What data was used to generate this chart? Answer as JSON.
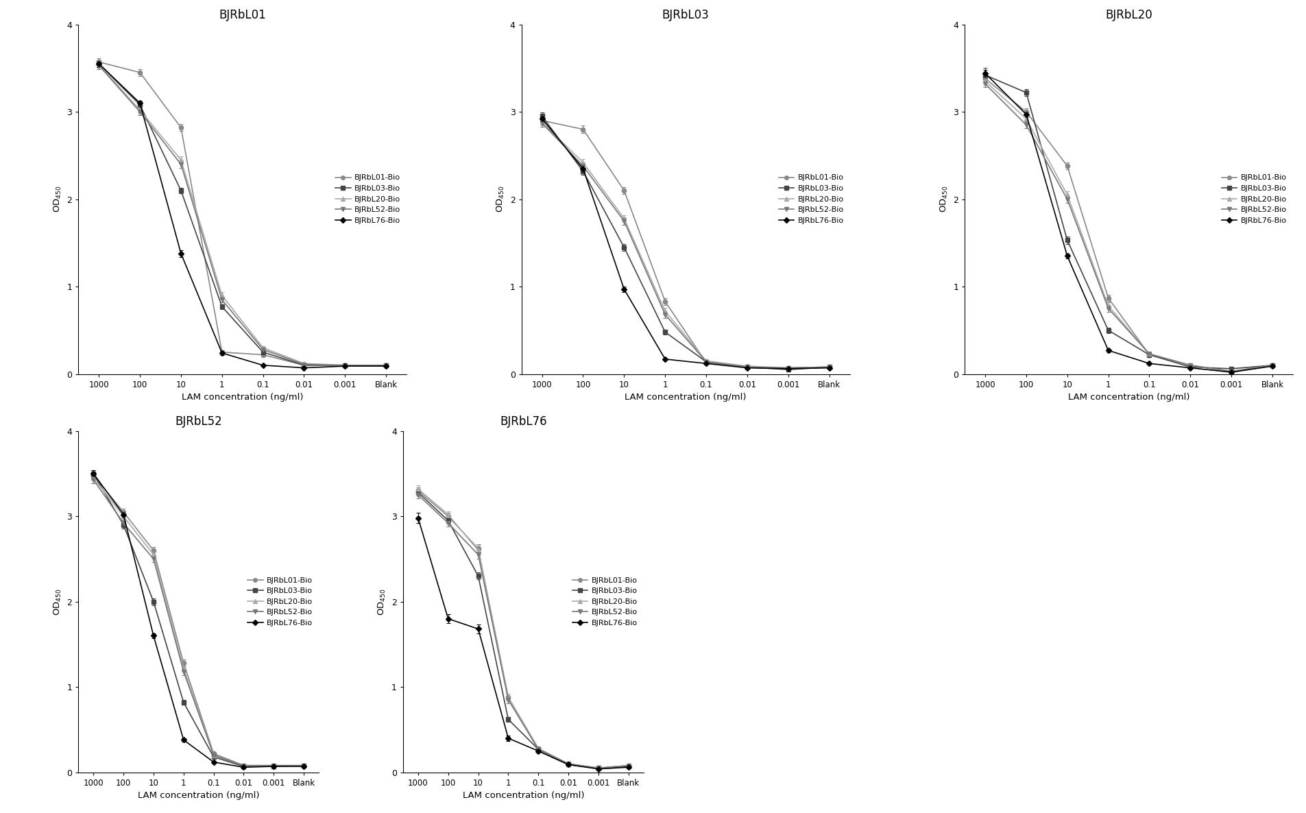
{
  "series_names": [
    "BJRbL01-Bio",
    "BJRbL03-Bio",
    "BJRbL20-Bio",
    "BJRbL52-Bio",
    "BJRbL76-Bio"
  ],
  "colors": [
    "#888888",
    "#555555",
    "#aaaaaa",
    "#777777",
    "#111111"
  ],
  "markers": [
    "o",
    "s",
    "^",
    "v",
    "D"
  ],
  "x_positions": [
    0,
    1,
    2,
    3,
    4,
    5,
    6,
    7
  ],
  "x_labels": [
    "1000",
    "100",
    "10",
    "1",
    "0.1",
    "0.01",
    "0.001",
    "Blank"
  ],
  "panels": [
    {
      "title": "BJRbL01",
      "data": [
        {
          "y": [
            3.57,
            3.45,
            2.82,
            0.25,
            0.22,
            0.1,
            0.1,
            0.1
          ],
          "yerr": [
            0.04,
            0.04,
            0.04,
            0.02,
            0.02,
            0.01,
            0.01,
            0.01
          ]
        },
        {
          "y": [
            3.55,
            3.08,
            2.1,
            0.77,
            0.25,
            0.1,
            0.1,
            0.1
          ],
          "yerr": [
            0.04,
            0.04,
            0.03,
            0.03,
            0.02,
            0.01,
            0.01,
            0.01
          ]
        },
        {
          "y": [
            3.54,
            3.02,
            2.45,
            0.9,
            0.3,
            0.12,
            0.1,
            0.1
          ],
          "yerr": [
            0.04,
            0.04,
            0.04,
            0.04,
            0.02,
            0.01,
            0.01,
            0.01
          ]
        },
        {
          "y": [
            3.53,
            3.0,
            2.4,
            0.85,
            0.28,
            0.11,
            0.1,
            0.1
          ],
          "yerr": [
            0.04,
            0.04,
            0.04,
            0.03,
            0.02,
            0.01,
            0.01,
            0.01
          ]
        },
        {
          "y": [
            3.55,
            3.1,
            1.38,
            0.24,
            0.1,
            0.07,
            0.09,
            0.09
          ],
          "yerr": [
            0.04,
            0.03,
            0.04,
            0.02,
            0.01,
            0.01,
            0.01,
            0.01
          ]
        }
      ]
    },
    {
      "title": "BJRbL03",
      "data": [
        {
          "y": [
            2.9,
            2.8,
            2.1,
            0.83,
            0.13,
            0.08,
            0.07,
            0.08
          ],
          "yerr": [
            0.04,
            0.04,
            0.04,
            0.04,
            0.01,
            0.01,
            0.01,
            0.01
          ]
        },
        {
          "y": [
            2.95,
            2.32,
            1.45,
            0.48,
            0.14,
            0.08,
            0.05,
            0.08
          ],
          "yerr": [
            0.04,
            0.04,
            0.04,
            0.03,
            0.01,
            0.01,
            0.01,
            0.01
          ]
        },
        {
          "y": [
            2.88,
            2.42,
            1.78,
            0.72,
            0.15,
            0.09,
            0.07,
            0.08
          ],
          "yerr": [
            0.04,
            0.04,
            0.04,
            0.04,
            0.01,
            0.01,
            0.01,
            0.01
          ]
        },
        {
          "y": [
            2.87,
            2.38,
            1.75,
            0.68,
            0.14,
            0.08,
            0.07,
            0.08
          ],
          "yerr": [
            0.04,
            0.04,
            0.04,
            0.04,
            0.01,
            0.01,
            0.01,
            0.01
          ]
        },
        {
          "y": [
            2.92,
            2.35,
            0.97,
            0.17,
            0.12,
            0.07,
            0.06,
            0.07
          ],
          "yerr": [
            0.04,
            0.03,
            0.03,
            0.01,
            0.01,
            0.01,
            0.01,
            0.01
          ]
        }
      ]
    },
    {
      "title": "BJRbL20",
      "data": [
        {
          "y": [
            3.38,
            3.0,
            2.38,
            0.87,
            0.22,
            0.1,
            0.02,
            0.1
          ],
          "yerr": [
            0.04,
            0.04,
            0.04,
            0.04,
            0.02,
            0.01,
            0.01,
            0.01
          ]
        },
        {
          "y": [
            3.42,
            3.22,
            1.53,
            0.5,
            0.22,
            0.08,
            0.06,
            0.1
          ],
          "yerr": [
            0.08,
            0.04,
            0.04,
            0.03,
            0.02,
            0.01,
            0.01,
            0.01
          ]
        },
        {
          "y": [
            3.35,
            2.92,
            2.05,
            0.78,
            0.23,
            0.1,
            0.03,
            0.1
          ],
          "yerr": [
            0.04,
            0.04,
            0.04,
            0.04,
            0.02,
            0.01,
            0.01,
            0.01
          ]
        },
        {
          "y": [
            3.32,
            2.85,
            2.0,
            0.75,
            0.23,
            0.1,
            0.03,
            0.1
          ],
          "yerr": [
            0.04,
            0.04,
            0.04,
            0.04,
            0.02,
            0.01,
            0.01,
            0.01
          ]
        },
        {
          "y": [
            3.44,
            2.97,
            1.35,
            0.27,
            0.12,
            0.07,
            0.02,
            0.09
          ],
          "yerr": [
            0.04,
            0.03,
            0.03,
            0.02,
            0.01,
            0.01,
            0.01,
            0.01
          ]
        }
      ]
    },
    {
      "title": "BJRbL52",
      "data": [
        {
          "y": [
            3.48,
            3.05,
            2.6,
            1.28,
            0.22,
            0.08,
            0.08,
            0.08
          ],
          "yerr": [
            0.04,
            0.04,
            0.04,
            0.04,
            0.02,
            0.01,
            0.01,
            0.01
          ]
        },
        {
          "y": [
            3.5,
            2.9,
            2.0,
            0.82,
            0.18,
            0.07,
            0.07,
            0.08
          ],
          "yerr": [
            0.04,
            0.04,
            0.04,
            0.03,
            0.01,
            0.01,
            0.01,
            0.01
          ]
        },
        {
          "y": [
            3.45,
            3.0,
            2.55,
            1.22,
            0.2,
            0.08,
            0.08,
            0.08
          ],
          "yerr": [
            0.06,
            0.04,
            0.04,
            0.04,
            0.02,
            0.01,
            0.01,
            0.01
          ]
        },
        {
          "y": [
            3.43,
            2.92,
            2.5,
            1.18,
            0.2,
            0.08,
            0.08,
            0.08
          ],
          "yerr": [
            0.04,
            0.04,
            0.04,
            0.04,
            0.02,
            0.01,
            0.01,
            0.01
          ]
        },
        {
          "y": [
            3.5,
            3.02,
            1.6,
            0.38,
            0.12,
            0.06,
            0.07,
            0.07
          ],
          "yerr": [
            0.04,
            0.03,
            0.03,
            0.02,
            0.01,
            0.01,
            0.01,
            0.01
          ]
        }
      ]
    },
    {
      "title": "BJRbL76",
      "data": [
        {
          "y": [
            3.3,
            3.0,
            2.62,
            0.88,
            0.28,
            0.1,
            0.05,
            0.08
          ],
          "yerr": [
            0.04,
            0.04,
            0.05,
            0.04,
            0.02,
            0.01,
            0.01,
            0.01
          ]
        },
        {
          "y": [
            3.28,
            2.95,
            2.3,
            0.62,
            0.27,
            0.09,
            0.05,
            0.07
          ],
          "yerr": [
            0.04,
            0.04,
            0.04,
            0.03,
            0.02,
            0.01,
            0.01,
            0.01
          ]
        },
        {
          "y": [
            3.32,
            3.02,
            2.6,
            0.88,
            0.27,
            0.1,
            0.05,
            0.08
          ],
          "yerr": [
            0.04,
            0.04,
            0.06,
            0.04,
            0.02,
            0.01,
            0.01,
            0.01
          ]
        },
        {
          "y": [
            3.25,
            2.92,
            2.55,
            0.85,
            0.27,
            0.1,
            0.05,
            0.08
          ],
          "yerr": [
            0.04,
            0.04,
            0.05,
            0.04,
            0.02,
            0.01,
            0.01,
            0.01
          ]
        },
        {
          "y": [
            2.98,
            1.8,
            1.68,
            0.4,
            0.25,
            0.09,
            0.04,
            0.06
          ],
          "yerr": [
            0.06,
            0.05,
            0.05,
            0.03,
            0.02,
            0.01,
            0.01,
            0.01
          ]
        }
      ]
    }
  ],
  "ylim": [
    0,
    4
  ],
  "yticks": [
    0,
    1,
    2,
    3,
    4
  ],
  "ylabel": "OD$_{450}$",
  "xlabel": "LAM concentration (ng/ml)",
  "legend_loc": "center right",
  "background_color": "#ffffff",
  "line_color": "#333333",
  "figsize": [
    19.05,
    11.86
  ],
  "dpi": 100
}
